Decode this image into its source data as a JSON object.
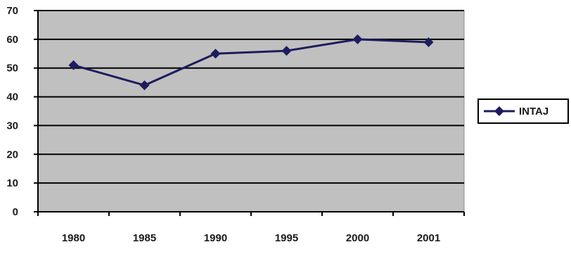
{
  "chart_data": {
    "type": "line",
    "title": "",
    "xlabel": "",
    "ylabel": "",
    "categories": [
      "1980",
      "1985",
      "1990",
      "1995",
      "2000",
      "2001"
    ],
    "series": [
      {
        "name": "INTAJ",
        "values": [
          51,
          44,
          55,
          56,
          60,
          59
        ]
      }
    ],
    "ylim": [
      0,
      70
    ],
    "yticks": [
      0,
      10,
      20,
      30,
      40,
      50,
      60,
      70
    ],
    "grid": true,
    "legend": "right",
    "colors": {
      "plot_background": "#c0c0c0",
      "line": "#1c1c5e",
      "gridline": "#000000"
    }
  }
}
